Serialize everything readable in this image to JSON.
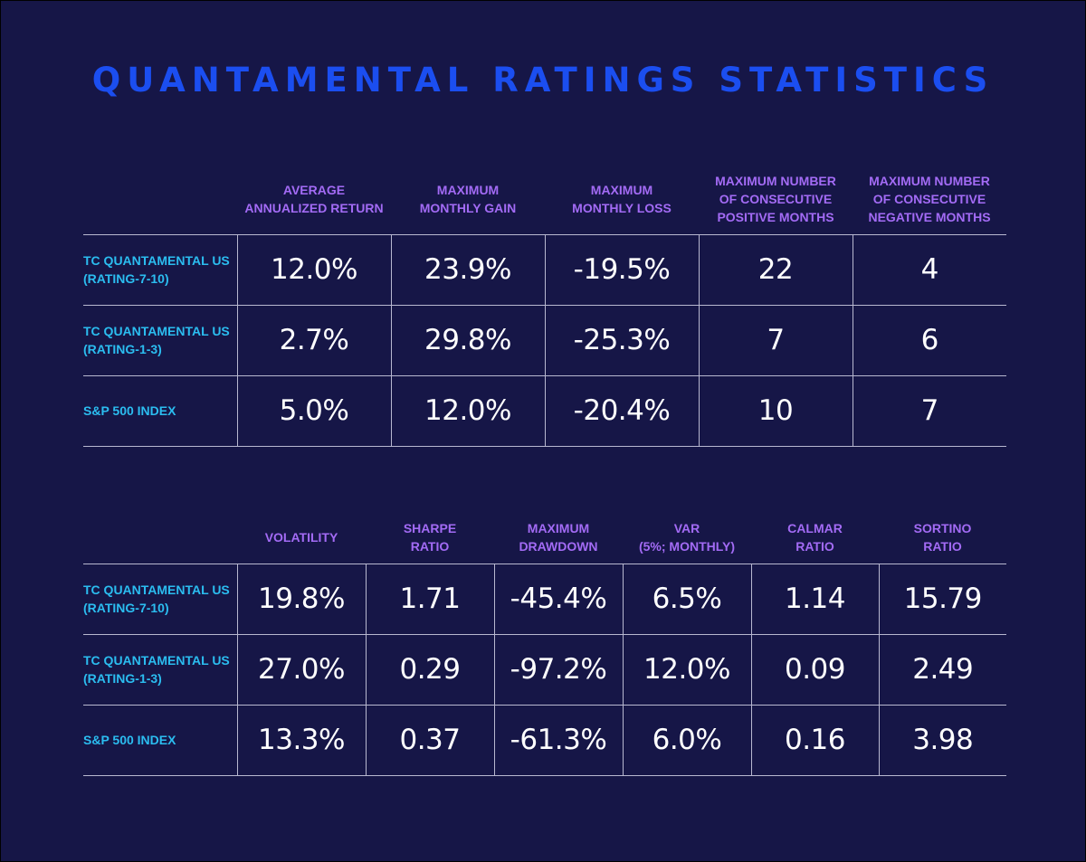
{
  "title": "QUANTAMENTAL RATINGS STATISTICS",
  "colors": {
    "background": "#161647",
    "title": "#1b4ef0",
    "header": "#a36bf5",
    "row_label": "#2bbdf0",
    "value": "#ffffff",
    "grid": "#b8b8d0"
  },
  "table1": {
    "headers": [
      "AVERAGE\nANNUALIZED RETURN",
      "MAXIMUM\nMONTHLY GAIN",
      "MAXIMUM\nMONTHLY LOSS",
      "MAXIMUM NUMBER\nOF CONSECUTIVE\nPOSITIVE MONTHS",
      "MAXIMUM NUMBER\nOF CONSECUTIVE\nNEGATIVE MONTHS"
    ],
    "rows": [
      {
        "label": "TC QUANTAMENTAL US\n(RATING-7-10)",
        "values": [
          "12.0%",
          "23.9%",
          "-19.5%",
          "22",
          "4"
        ]
      },
      {
        "label": "TC QUANTAMENTAL US\n(RATING-1-3)",
        "values": [
          "2.7%",
          "29.8%",
          "-25.3%",
          "7",
          "6"
        ]
      },
      {
        "label": "S&P 500 INDEX",
        "values": [
          "5.0%",
          "12.0%",
          "-20.4%",
          "10",
          "7"
        ]
      }
    ]
  },
  "table2": {
    "headers": [
      "VOLATILITY",
      "SHARPE\nRATIO",
      "MAXIMUM\nDRAWDOWN",
      "VAR\n(5%; MONTHLY)",
      "CALMAR\nRATIO",
      "SORTINO\nRATIO"
    ],
    "rows": [
      {
        "label": "TC QUANTAMENTAL US\n(RATING-7-10)",
        "values": [
          "19.8%",
          "1.71",
          "-45.4%",
          "6.5%",
          "1.14",
          "15.79"
        ]
      },
      {
        "label": "TC QUANTAMENTAL US\n(RATING-1-3)",
        "values": [
          "27.0%",
          "0.29",
          "-97.2%",
          "12.0%",
          "0.09",
          "2.49"
        ]
      },
      {
        "label": "S&P 500 INDEX",
        "values": [
          "13.3%",
          "0.37",
          "-61.3%",
          "6.0%",
          "0.16",
          "3.98"
        ]
      }
    ]
  }
}
